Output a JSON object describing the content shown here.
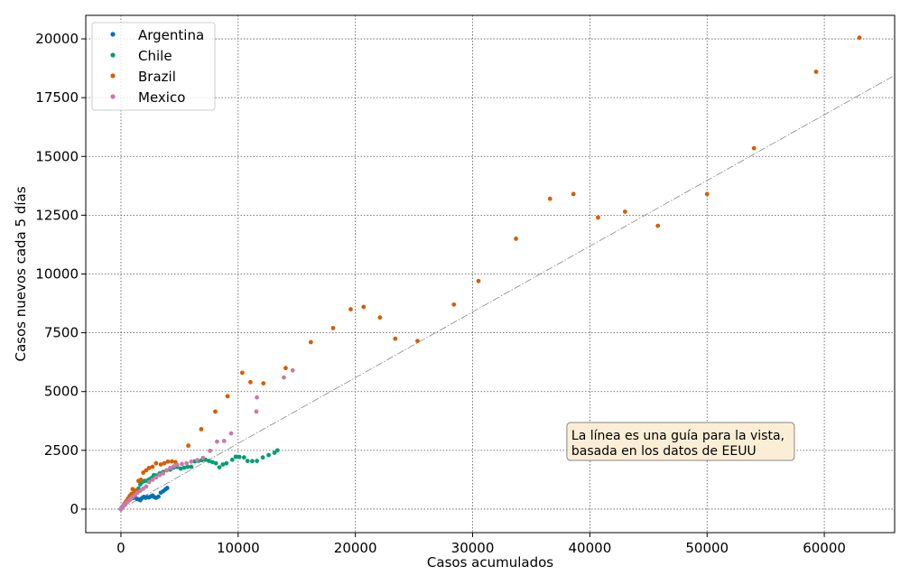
{
  "chart_data": {
    "type": "scatter",
    "xlabel": "Casos acumulados",
    "ylabel": "Casos nuevos cada 5 días",
    "xlim": [
      -3000,
      66000
    ],
    "ylim": [
      -1000,
      21000
    ],
    "x_ticks": [
      0,
      10000,
      20000,
      30000,
      40000,
      50000,
      60000
    ],
    "y_ticks": [
      0,
      2500,
      5000,
      7500,
      10000,
      12500,
      15000,
      17500,
      20000
    ],
    "grid": true,
    "legend_position": "upper-left",
    "guide_line": {
      "from": [
        0,
        0
      ],
      "to": [
        66000,
        18450
      ],
      "color": "#888888"
    },
    "annotation": {
      "lines": [
        "La línea es una guía para la vista,",
        "basada en los datos de EEUU"
      ],
      "x": 38500,
      "y": 2300,
      "box_fill": "#fbeed6",
      "box_stroke": "#888888"
    },
    "series": [
      {
        "name": "Argentina",
        "color": "#0072b2",
        "points": [
          [
            0,
            0
          ],
          [
            20,
            15
          ],
          [
            50,
            40
          ],
          [
            100,
            80
          ],
          [
            150,
            110
          ],
          [
            250,
            170
          ],
          [
            350,
            240
          ],
          [
            450,
            290
          ],
          [
            600,
            340
          ],
          [
            800,
            420
          ],
          [
            1000,
            470
          ],
          [
            1200,
            500
          ],
          [
            1350,
            440
          ],
          [
            1500,
            420
          ],
          [
            1650,
            380
          ],
          [
            1800,
            470
          ],
          [
            1950,
            520
          ],
          [
            2100,
            480
          ],
          [
            2250,
            510
          ],
          [
            2400,
            500
          ],
          [
            2550,
            540
          ],
          [
            2700,
            580
          ],
          [
            2850,
            510
          ],
          [
            3000,
            480
          ],
          [
            3200,
            530
          ],
          [
            3400,
            700
          ],
          [
            3600,
            760
          ],
          [
            3800,
            840
          ],
          [
            3950,
            900
          ]
        ]
      },
      {
        "name": "Chile",
        "color": "#009e73",
        "points": [
          [
            0,
            0
          ],
          [
            50,
            40
          ],
          [
            150,
            110
          ],
          [
            300,
            200
          ],
          [
            450,
            330
          ],
          [
            600,
            430
          ],
          [
            800,
            550
          ],
          [
            1000,
            650
          ],
          [
            1150,
            700
          ],
          [
            1300,
            690
          ],
          [
            1500,
            880
          ],
          [
            1650,
            1050
          ],
          [
            1800,
            1150
          ],
          [
            2000,
            1200
          ],
          [
            2200,
            1200
          ],
          [
            2400,
            1260
          ],
          [
            2600,
            1320
          ],
          [
            2800,
            1440
          ],
          [
            3000,
            1430
          ],
          [
            3300,
            1520
          ],
          [
            3600,
            1580
          ],
          [
            3900,
            1650
          ],
          [
            4200,
            1680
          ],
          [
            4500,
            1760
          ],
          [
            4800,
            1790
          ],
          [
            5100,
            1720
          ],
          [
            5400,
            1760
          ],
          [
            5700,
            1800
          ],
          [
            6000,
            1800
          ],
          [
            6300,
            2030
          ],
          [
            6600,
            2050
          ],
          [
            6900,
            2080
          ],
          [
            7200,
            2100
          ],
          [
            7500,
            2050
          ],
          [
            7800,
            2000
          ],
          [
            8100,
            1950
          ],
          [
            8400,
            1780
          ],
          [
            8700,
            1900
          ],
          [
            9000,
            1950
          ],
          [
            9500,
            2100
          ],
          [
            9800,
            2230
          ],
          [
            10100,
            2220
          ],
          [
            10500,
            2200
          ],
          [
            10800,
            2050
          ],
          [
            11200,
            2040
          ],
          [
            11600,
            2050
          ],
          [
            12100,
            2200
          ],
          [
            12600,
            2300
          ],
          [
            13100,
            2400
          ],
          [
            13350,
            2500
          ]
        ]
      },
      {
        "name": "Brazil",
        "color": "#d55e00",
        "points": [
          [
            0,
            0
          ],
          [
            50,
            40
          ],
          [
            150,
            120
          ],
          [
            300,
            230
          ],
          [
            450,
            330
          ],
          [
            600,
            450
          ],
          [
            750,
            560
          ],
          [
            900,
            650
          ],
          [
            1000,
            850
          ],
          [
            1150,
            720
          ],
          [
            1300,
            800
          ],
          [
            1500,
            1200
          ],
          [
            1700,
            1250
          ],
          [
            1900,
            1550
          ],
          [
            2150,
            1650
          ],
          [
            2400,
            1750
          ],
          [
            2700,
            1800
          ],
          [
            3000,
            1950
          ],
          [
            3400,
            1900
          ],
          [
            3700,
            1950
          ],
          [
            4000,
            2020
          ],
          [
            4350,
            2030
          ],
          [
            4650,
            2000
          ],
          [
            5750,
            2700
          ],
          [
            6850,
            3400
          ],
          [
            8050,
            4150
          ],
          [
            9100,
            4800
          ],
          [
            10350,
            5800
          ],
          [
            11050,
            5400
          ],
          [
            12150,
            5350
          ],
          [
            14050,
            6000
          ],
          [
            16200,
            7100
          ],
          [
            18100,
            7700
          ],
          [
            19600,
            8500
          ],
          [
            20700,
            8600
          ],
          [
            22100,
            8150
          ],
          [
            23400,
            7250
          ],
          [
            25300,
            7150
          ],
          [
            28400,
            8700
          ],
          [
            30500,
            9700
          ],
          [
            33700,
            11500
          ],
          [
            36600,
            13200
          ],
          [
            38600,
            13400
          ],
          [
            40700,
            12400
          ],
          [
            43000,
            12650
          ],
          [
            45800,
            12050
          ],
          [
            50000,
            13400
          ],
          [
            54000,
            15350
          ],
          [
            59300,
            18600
          ],
          [
            63000,
            20050
          ]
        ]
      },
      {
        "name": "Mexico",
        "color": "#cc79a7",
        "points": [
          [
            0,
            0
          ],
          [
            30,
            20
          ],
          [
            80,
            60
          ],
          [
            150,
            100
          ],
          [
            250,
            160
          ],
          [
            400,
            230
          ],
          [
            550,
            300
          ],
          [
            700,
            380
          ],
          [
            850,
            450
          ],
          [
            1000,
            520
          ],
          [
            1200,
            600
          ],
          [
            1400,
            700
          ],
          [
            1650,
            780
          ],
          [
            1900,
            870
          ],
          [
            2150,
            960
          ],
          [
            2400,
            1150
          ],
          [
            2700,
            1250
          ],
          [
            3000,
            1350
          ],
          [
            3300,
            1450
          ],
          [
            3600,
            1520
          ],
          [
            3900,
            1650
          ],
          [
            4200,
            1750
          ],
          [
            4500,
            1820
          ],
          [
            4800,
            1880
          ],
          [
            5200,
            1920
          ],
          [
            5600,
            1950
          ],
          [
            6000,
            2020
          ],
          [
            6500,
            2080
          ],
          [
            7000,
            2180
          ],
          [
            7600,
            2480
          ],
          [
            8200,
            2870
          ],
          [
            8800,
            2900
          ],
          [
            9400,
            3220
          ],
          [
            11550,
            4150
          ],
          [
            11600,
            4750
          ],
          [
            13900,
            5600
          ],
          [
            14650,
            5900
          ]
        ]
      }
    ]
  }
}
